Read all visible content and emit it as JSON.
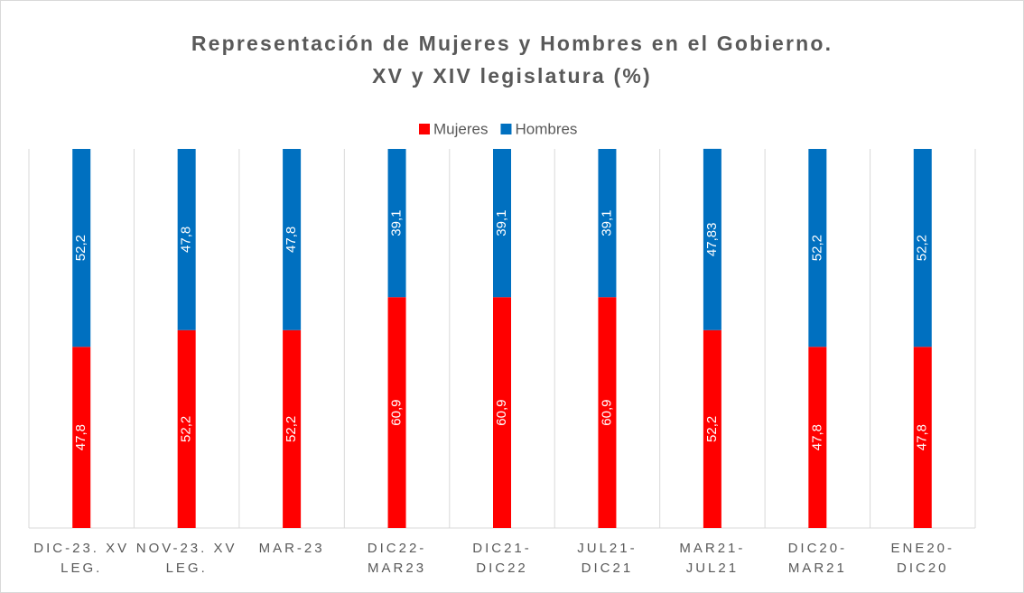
{
  "chart_data": {
    "type": "stacked_bar",
    "title": "Representación de Mujeres y Hombres en el Gobierno. XV y XIV legislatura (%)",
    "categories": [
      "DIC-23. XV LEG.",
      "NOV-23. XV LEG.",
      "MAR-23",
      "DIC22-MAR23",
      "DIC21-DIC22",
      "JUL21-DIC21",
      "MAR21-JUL21",
      "DIC20-MAR21",
      "ENE20-DIC20"
    ],
    "series": [
      {
        "name": "Mujeres",
        "color": "#ff0000",
        "values": [
          47.8,
          52.2,
          52.2,
          60.9,
          60.9,
          60.9,
          52.2,
          47.8,
          47.8
        ],
        "value_labels": [
          "47,8",
          "52,2",
          "52,2",
          "60,9",
          "60,9",
          "60,9",
          "52,2",
          "47,8",
          "47,8"
        ]
      },
      {
        "name": "Hombres",
        "color": "#0070c0",
        "values": [
          52.2,
          47.8,
          47.8,
          39.1,
          39.1,
          39.1,
          47.83,
          52.2,
          52.2
        ],
        "value_labels": [
          "52,2",
          "47,8",
          "47,8",
          "39,1",
          "39,1",
          "39,1",
          "47,83",
          "52,2",
          "52,2"
        ]
      }
    ],
    "ylim": [
      0,
      100
    ],
    "legend": "top"
  }
}
